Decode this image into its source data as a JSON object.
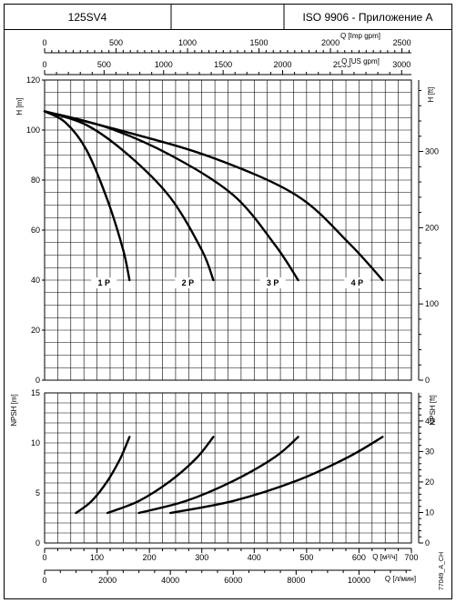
{
  "header": {
    "model": "125SV4",
    "middle": "",
    "standard": "ISO 9906 - Приложение A"
  },
  "figure_code": "77049_A_CH",
  "chart_data": [
    {
      "type": "line",
      "panel": "head",
      "ylabel_left": "H [m]",
      "ylabel_right": "H [ft]",
      "ylim": [
        0,
        120
      ],
      "yticks_left": [
        0,
        20,
        40,
        60,
        80,
        100,
        120
      ],
      "yticks_right": [
        0,
        100,
        200,
        300
      ],
      "xlabel_top_inner": "Q [Imp gpm]",
      "xticks_top_inner": [
        0,
        500,
        1000,
        1500,
        2000,
        2500
      ],
      "xlabel_top_outer": "Q [US gpm]",
      "xticks_top_outer": [
        0,
        500,
        1000,
        1500,
        2000,
        2500,
        3000
      ],
      "grid": true,
      "series": [
        {
          "name": "1 P",
          "x": [
            0,
            40,
            80,
            120,
            150,
            162
          ],
          "y": [
            107.5,
            103,
            92,
            72,
            52,
            40
          ]
        },
        {
          "name": "2 P",
          "x": [
            0,
            80,
            160,
            240,
            300,
            322
          ],
          "y": [
            107.5,
            102,
            90,
            73,
            52,
            40
          ]
        },
        {
          "name": "3 P",
          "x": [
            0,
            120,
            240,
            360,
            440,
            484
          ],
          "y": [
            107.5,
            101,
            90,
            74,
            54,
            40
          ]
        },
        {
          "name": "4 P",
          "x": [
            0,
            160,
            320,
            480,
            580,
            645
          ],
          "y": [
            107.5,
            99,
            89,
            74,
            55,
            40
          ]
        }
      ]
    },
    {
      "type": "line",
      "panel": "npsh",
      "ylabel_left": "NPSH [m]",
      "ylabel_right": "NPSH [ft]",
      "ylim": [
        0,
        15
      ],
      "yticks_left": [
        0,
        5,
        10,
        15
      ],
      "yticks_right": [
        0,
        10,
        20,
        30,
        40
      ],
      "xlabel_bottom_inner": "Q [м³/ч]",
      "xticks_bottom_inner": [
        0,
        100,
        200,
        300,
        400,
        500,
        600,
        700
      ],
      "xlabel_bottom_outer": "Q [л/мин]",
      "xticks_bottom_outer": [
        0,
        2000,
        4000,
        6000,
        8000,
        10000
      ],
      "xlim": [
        0,
        700
      ],
      "grid": true,
      "series": [
        {
          "name": "1 P",
          "x": [
            60,
            90,
            120,
            145,
            162
          ],
          "y": [
            3.0,
            4.2,
            6.2,
            8.5,
            10.6
          ]
        },
        {
          "name": "2 P",
          "x": [
            120,
            180,
            240,
            290,
            322
          ],
          "y": [
            3.0,
            4.2,
            6.2,
            8.5,
            10.6
          ]
        },
        {
          "name": "3 P",
          "x": [
            180,
            270,
            360,
            440,
            484
          ],
          "y": [
            3.0,
            4.2,
            6.2,
            8.6,
            10.6
          ]
        },
        {
          "name": "4 P",
          "x": [
            240,
            360,
            480,
            580,
            645
          ],
          "y": [
            3.0,
            4.2,
            6.2,
            8.6,
            10.6
          ]
        }
      ]
    }
  ]
}
